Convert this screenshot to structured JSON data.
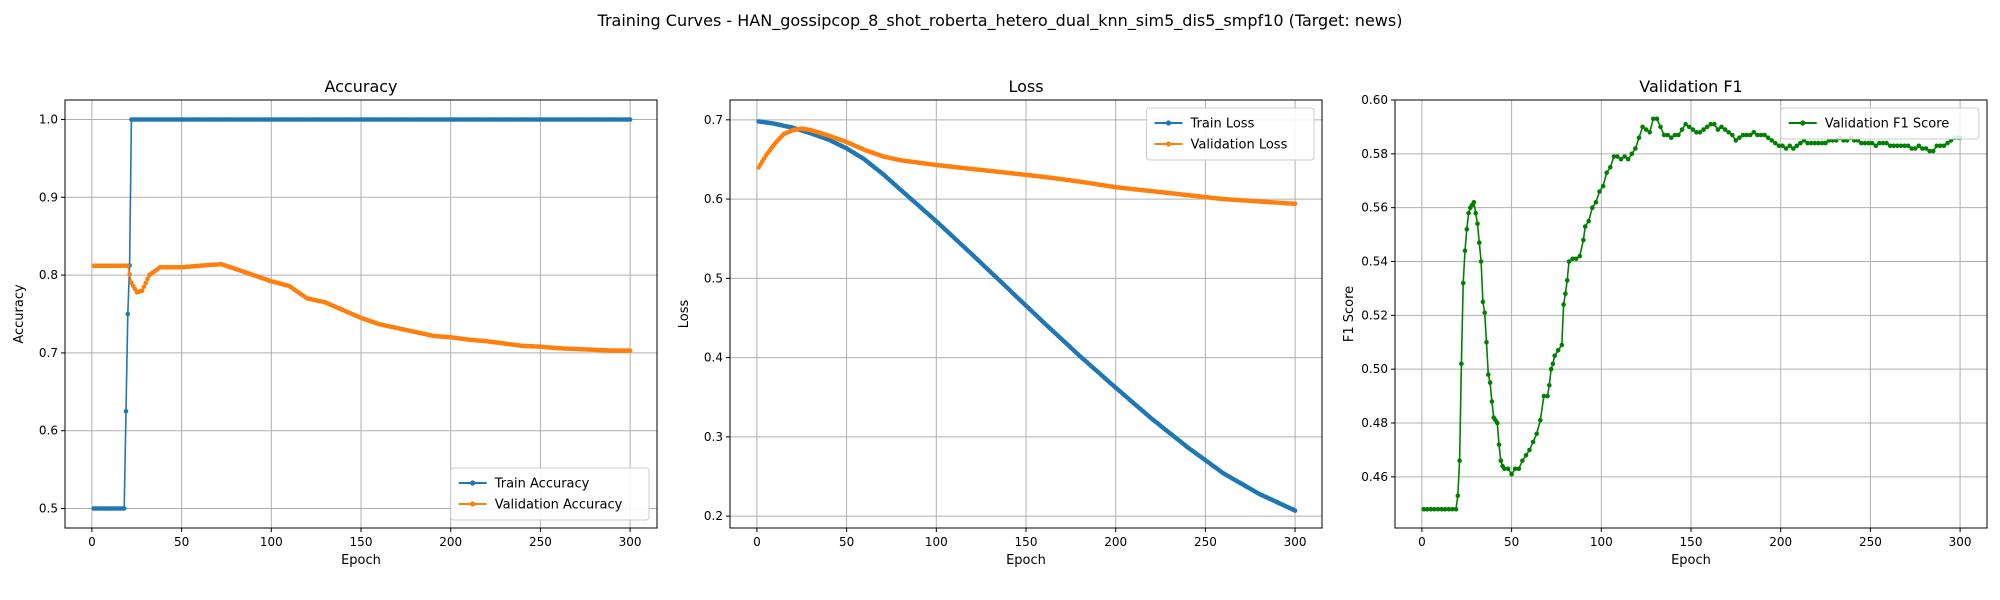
{
  "figure": {
    "suptitle": "Training Curves - HAN_gossipcop_8_shot_roberta_hetero_dual_knn_sim5_dis5_smpf10 (Target: news)"
  },
  "colors": {
    "blue": "#1f77b4",
    "orange": "#ff7f0e",
    "green": "#008000"
  },
  "chart_data": [
    {
      "type": "line",
      "title": "Accuracy",
      "xlabel": "Epoch",
      "ylabel": "Accuracy",
      "xlim": [
        -15,
        315
      ],
      "ylim": [
        0.475,
        1.025
      ],
      "xticks": [
        0,
        50,
        100,
        150,
        200,
        250,
        300
      ],
      "yticks": [
        0.5,
        0.6,
        0.7,
        0.8,
        0.9,
        1.0
      ],
      "ytick_labels": [
        "0.5",
        "0.6",
        "0.7",
        "0.8",
        "0.9",
        "1.0"
      ],
      "grid": true,
      "legend": "lower-right",
      "series": [
        {
          "name": "Train Accuracy",
          "color": "#1f77b4",
          "keypoints": [
            [
              1,
              0.5
            ],
            [
              18,
              0.5
            ],
            [
              19,
              0.625
            ],
            [
              20,
              0.75
            ],
            [
              21,
              0.8125
            ],
            [
              22,
              1.0
            ],
            [
              300,
              1.0
            ]
          ]
        },
        {
          "name": "Validation Accuracy",
          "color": "#ff7f0e",
          "keypoints": [
            [
              1,
              0.812
            ],
            [
              20,
              0.812
            ],
            [
              22,
              0.79
            ],
            [
              25,
              0.778
            ],
            [
              28,
              0.78
            ],
            [
              32,
              0.8
            ],
            [
              38,
              0.81
            ],
            [
              50,
              0.81
            ],
            [
              60,
              0.812
            ],
            [
              72,
              0.814
            ],
            [
              80,
              0.808
            ],
            [
              90,
              0.8
            ],
            [
              100,
              0.792
            ],
            [
              110,
              0.786
            ],
            [
              120,
              0.77
            ],
            [
              130,
              0.765
            ],
            [
              140,
              0.755
            ],
            [
              150,
              0.745
            ],
            [
              160,
              0.737
            ],
            [
              170,
              0.732
            ],
            [
              180,
              0.727
            ],
            [
              190,
              0.722
            ],
            [
              200,
              0.72
            ],
            [
              210,
              0.717
            ],
            [
              220,
              0.715
            ],
            [
              230,
              0.712
            ],
            [
              240,
              0.709
            ],
            [
              250,
              0.708
            ],
            [
              260,
              0.706
            ],
            [
              270,
              0.705
            ],
            [
              280,
              0.704
            ],
            [
              290,
              0.703
            ],
            [
              300,
              0.703
            ]
          ]
        }
      ]
    },
    {
      "type": "line",
      "title": "Loss",
      "xlabel": "Epoch",
      "ylabel": "Loss",
      "xlim": [
        -15,
        315
      ],
      "ylim": [
        0.185,
        0.725
      ],
      "xticks": [
        0,
        50,
        100,
        150,
        200,
        250,
        300
      ],
      "yticks": [
        0.2,
        0.3,
        0.4,
        0.5,
        0.6,
        0.7
      ],
      "ytick_labels": [
        "0.2",
        "0.3",
        "0.4",
        "0.5",
        "0.6",
        "0.7"
      ],
      "grid": true,
      "legend": "upper-right",
      "series": [
        {
          "name": "Train Loss",
          "color": "#1f77b4",
          "keypoints": [
            [
              1,
              0.698
            ],
            [
              10,
              0.695
            ],
            [
              20,
              0.69
            ],
            [
              30,
              0.683
            ],
            [
              40,
              0.675
            ],
            [
              50,
              0.664
            ],
            [
              60,
              0.65
            ],
            [
              70,
              0.632
            ],
            [
              80,
              0.612
            ],
            [
              90,
              0.592
            ],
            [
              100,
              0.572
            ],
            [
              120,
              0.53
            ],
            [
              140,
              0.487
            ],
            [
              160,
              0.444
            ],
            [
              180,
              0.402
            ],
            [
              200,
              0.362
            ],
            [
              220,
              0.323
            ],
            [
              240,
              0.287
            ],
            [
              260,
              0.254
            ],
            [
              280,
              0.228
            ],
            [
              300,
              0.207
            ]
          ]
        },
        {
          "name": "Validation Loss",
          "color": "#ff7f0e",
          "keypoints": [
            [
              1,
              0.64
            ],
            [
              5,
              0.655
            ],
            [
              10,
              0.67
            ],
            [
              15,
              0.682
            ],
            [
              20,
              0.687
            ],
            [
              25,
              0.689
            ],
            [
              30,
              0.687
            ],
            [
              40,
              0.68
            ],
            [
              50,
              0.672
            ],
            [
              60,
              0.662
            ],
            [
              70,
              0.654
            ],
            [
              80,
              0.649
            ],
            [
              90,
              0.646
            ],
            [
              100,
              0.643
            ],
            [
              120,
              0.638
            ],
            [
              140,
              0.633
            ],
            [
              160,
              0.628
            ],
            [
              180,
              0.622
            ],
            [
              200,
              0.615
            ],
            [
              220,
              0.61
            ],
            [
              240,
              0.605
            ],
            [
              260,
              0.6
            ],
            [
              280,
              0.597
            ],
            [
              300,
              0.594
            ]
          ]
        }
      ]
    },
    {
      "type": "line",
      "title": "Validation F1",
      "xlabel": "Epoch",
      "ylabel": "F1 Score",
      "xlim": [
        -15,
        315
      ],
      "ylim": [
        0.441,
        0.6
      ],
      "xticks": [
        0,
        50,
        100,
        150,
        200,
        250,
        300
      ],
      "yticks": [
        0.46,
        0.48,
        0.5,
        0.52,
        0.54,
        0.56,
        0.58,
        0.6
      ],
      "ytick_labels": [
        "0.46",
        "0.48",
        "0.50",
        "0.52",
        "0.54",
        "0.56",
        "0.58",
        "0.60"
      ],
      "grid": true,
      "legend": "upper-right",
      "series": [
        {
          "name": "Validation F1 Score",
          "color": "#008000",
          "points": [
            [
              1,
              0.448
            ],
            [
              3,
              0.448
            ],
            [
              5,
              0.448
            ],
            [
              7,
              0.448
            ],
            [
              9,
              0.448
            ],
            [
              11,
              0.448
            ],
            [
              13,
              0.448
            ],
            [
              15,
              0.448
            ],
            [
              17,
              0.448
            ],
            [
              19,
              0.448
            ],
            [
              20,
              0.453
            ],
            [
              21,
              0.466
            ],
            [
              22,
              0.502
            ],
            [
              23,
              0.532
            ],
            [
              24,
              0.544
            ],
            [
              25,
              0.552
            ],
            [
              26,
              0.558
            ],
            [
              27,
              0.56
            ],
            [
              28,
              0.561
            ],
            [
              29,
              0.562
            ],
            [
              30,
              0.558
            ],
            [
              31,
              0.554
            ],
            [
              32,
              0.547
            ],
            [
              33,
              0.54
            ],
            [
              34,
              0.525
            ],
            [
              35,
              0.521
            ],
            [
              36,
              0.51
            ],
            [
              37,
              0.498
            ],
            [
              38,
              0.495
            ],
            [
              39,
              0.488
            ],
            [
              40,
              0.482
            ],
            [
              41,
              0.481
            ],
            [
              42,
              0.48
            ],
            [
              43,
              0.472
            ],
            [
              44,
              0.466
            ],
            [
              45,
              0.464
            ],
            [
              46,
              0.463
            ],
            [
              48,
              0.463
            ],
            [
              50,
              0.461
            ],
            [
              52,
              0.463
            ],
            [
              54,
              0.463
            ],
            [
              56,
              0.466
            ],
            [
              58,
              0.468
            ],
            [
              60,
              0.47
            ],
            [
              62,
              0.473
            ],
            [
              64,
              0.476
            ],
            [
              66,
              0.481
            ],
            [
              68,
              0.49
            ],
            [
              70,
              0.49
            ],
            [
              71,
              0.494
            ],
            [
              72,
              0.5
            ],
            [
              73,
              0.502
            ],
            [
              74,
              0.505
            ],
            [
              76,
              0.507
            ],
            [
              78,
              0.509
            ],
            [
              79,
              0.524
            ],
            [
              80,
              0.528
            ],
            [
              81,
              0.533
            ],
            [
              82,
              0.54
            ],
            [
              84,
              0.541
            ],
            [
              86,
              0.541
            ],
            [
              88,
              0.542
            ],
            [
              90,
              0.548
            ],
            [
              91,
              0.553
            ],
            [
              93,
              0.555
            ],
            [
              95,
              0.56
            ],
            [
              97,
              0.562
            ],
            [
              99,
              0.566
            ],
            [
              101,
              0.568
            ],
            [
              103,
              0.573
            ],
            [
              105,
              0.575
            ],
            [
              107,
              0.579
            ],
            [
              109,
              0.579
            ],
            [
              111,
              0.578
            ],
            [
              113,
              0.579
            ],
            [
              115,
              0.578
            ],
            [
              117,
              0.58
            ],
            [
              119,
              0.582
            ],
            [
              121,
              0.586
            ],
            [
              123,
              0.59
            ],
            [
              125,
              0.589
            ],
            [
              127,
              0.588
            ],
            [
              129,
              0.593
            ],
            [
              131,
              0.593
            ],
            [
              133,
              0.59
            ],
            [
              135,
              0.587
            ],
            [
              137,
              0.587
            ],
            [
              139,
              0.586
            ],
            [
              141,
              0.587
            ],
            [
              143,
              0.587
            ],
            [
              145,
              0.589
            ],
            [
              147,
              0.591
            ],
            [
              149,
              0.59
            ],
            [
              151,
              0.589
            ],
            [
              153,
              0.588
            ],
            [
              155,
              0.588
            ],
            [
              157,
              0.589
            ],
            [
              159,
              0.59
            ],
            [
              161,
              0.591
            ],
            [
              163,
              0.591
            ],
            [
              165,
              0.589
            ],
            [
              167,
              0.59
            ],
            [
              169,
              0.589
            ],
            [
              171,
              0.588
            ],
            [
              173,
              0.587
            ],
            [
              175,
              0.585
            ],
            [
              177,
              0.586
            ],
            [
              179,
              0.587
            ],
            [
              181,
              0.587
            ],
            [
              183,
              0.587
            ],
            [
              185,
              0.588
            ],
            [
              187,
              0.587
            ],
            [
              189,
              0.587
            ],
            [
              191,
              0.587
            ],
            [
              193,
              0.586
            ],
            [
              195,
              0.585
            ],
            [
              197,
              0.584
            ],
            [
              199,
              0.583
            ],
            [
              201,
              0.583
            ],
            [
              203,
              0.582
            ],
            [
              205,
              0.583
            ],
            [
              207,
              0.582
            ],
            [
              209,
              0.583
            ],
            [
              211,
              0.584
            ],
            [
              213,
              0.585
            ],
            [
              215,
              0.584
            ],
            [
              217,
              0.584
            ],
            [
              219,
              0.584
            ],
            [
              221,
              0.584
            ],
            [
              223,
              0.584
            ],
            [
              225,
              0.584
            ],
            [
              227,
              0.585
            ],
            [
              229,
              0.585
            ],
            [
              231,
              0.585
            ],
            [
              233,
              0.586
            ],
            [
              235,
              0.585
            ],
            [
              237,
              0.585
            ],
            [
              239,
              0.586
            ],
            [
              241,
              0.585
            ],
            [
              243,
              0.585
            ],
            [
              245,
              0.584
            ],
            [
              247,
              0.584
            ],
            [
              249,
              0.584
            ],
            [
              251,
              0.584
            ],
            [
              253,
              0.583
            ],
            [
              255,
              0.584
            ],
            [
              257,
              0.584
            ],
            [
              259,
              0.584
            ],
            [
              261,
              0.583
            ],
            [
              263,
              0.583
            ],
            [
              265,
              0.583
            ],
            [
              267,
              0.583
            ],
            [
              269,
              0.583
            ],
            [
              271,
              0.583
            ],
            [
              273,
              0.582
            ],
            [
              275,
              0.582
            ],
            [
              277,
              0.583
            ],
            [
              279,
              0.582
            ],
            [
              281,
              0.582
            ],
            [
              283,
              0.581
            ],
            [
              285,
              0.581
            ],
            [
              287,
              0.583
            ],
            [
              289,
              0.583
            ],
            [
              291,
              0.583
            ],
            [
              293,
              0.584
            ],
            [
              295,
              0.585
            ],
            [
              297,
              0.586
            ],
            [
              299,
              0.586
            ],
            [
              300,
              0.586
            ]
          ]
        }
      ]
    }
  ]
}
